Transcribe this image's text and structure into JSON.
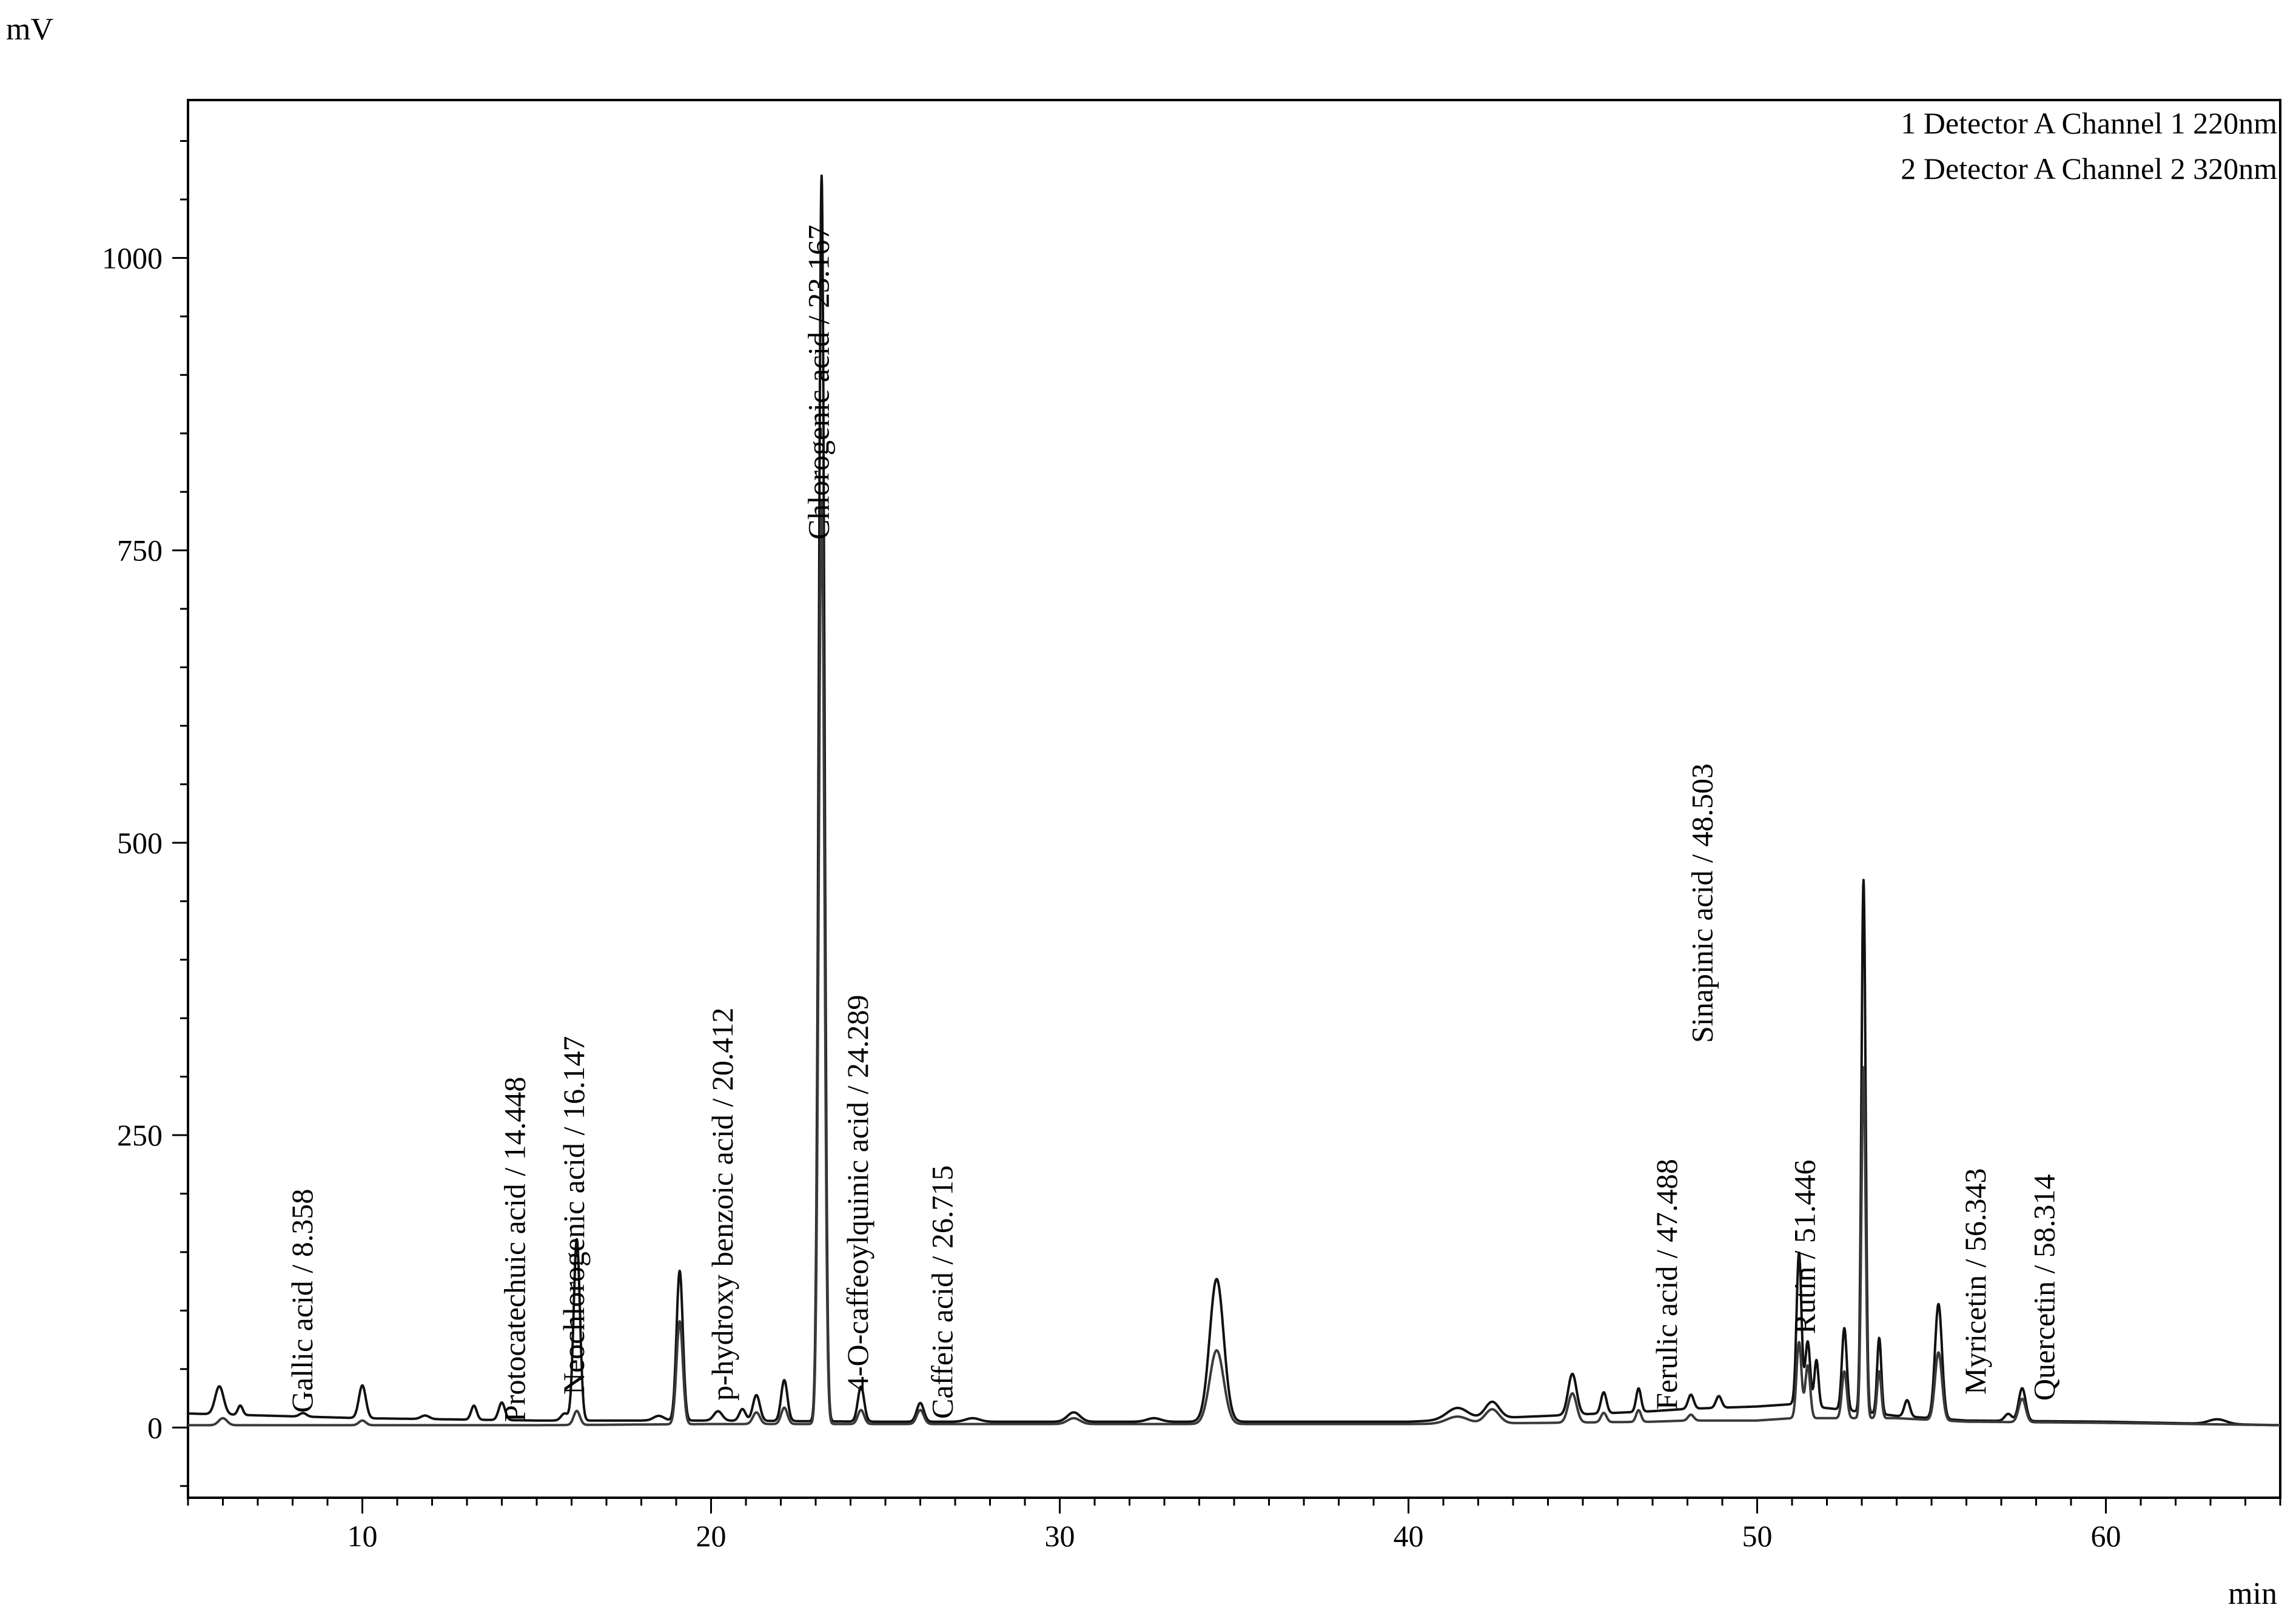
{
  "chart_data": {
    "type": "line",
    "y_unit": "mV",
    "x_unit": "min",
    "xlim": [
      5,
      65
    ],
    "ylim": [
      -60,
      1135
    ],
    "x_ticks": [
      10,
      20,
      30,
      40,
      50,
      60
    ],
    "x_tick_labels": [
      "10",
      "20",
      "30",
      "40",
      "50",
      "60"
    ],
    "y_ticks": [
      0,
      250,
      500,
      750,
      1000
    ],
    "y_tick_labels": [
      "0",
      "250",
      "500",
      "750",
      "1000"
    ],
    "grid": false,
    "legend_position": "top-right",
    "legend": [
      "1 Detector A Channel 1 220nm",
      "2 Detector A Channel 2 320nm"
    ],
    "series": [
      {
        "name": "1 Detector A Channel 1 220nm",
        "baseline": [
          [
            5,
            12
          ],
          [
            10,
            8
          ],
          [
            15,
            6
          ],
          [
            20,
            6
          ],
          [
            25,
            5
          ],
          [
            30,
            5
          ],
          [
            35,
            5
          ],
          [
            40,
            5
          ],
          [
            44,
            10
          ],
          [
            47,
            14
          ],
          [
            48,
            16
          ],
          [
            50,
            18
          ],
          [
            51,
            20
          ],
          [
            54,
            10
          ],
          [
            56,
            6
          ],
          [
            60,
            5
          ],
          [
            65,
            2
          ]
        ],
        "peaks": [
          [
            5.9,
            24,
            0.12
          ],
          [
            6.5,
            8,
            0.07
          ],
          [
            8.3,
            3,
            0.1
          ],
          [
            10.0,
            28,
            0.1
          ],
          [
            11.8,
            3,
            0.12
          ],
          [
            13.2,
            12,
            0.08
          ],
          [
            14.0,
            15,
            0.09
          ],
          [
            15.8,
            6,
            0.1
          ],
          [
            16.15,
            155,
            0.09
          ],
          [
            18.5,
            4,
            0.15
          ],
          [
            19.1,
            128,
            0.09
          ],
          [
            20.2,
            8,
            0.12
          ],
          [
            20.9,
            10,
            0.09
          ],
          [
            21.3,
            22,
            0.1
          ],
          [
            22.1,
            35,
            0.09
          ],
          [
            23.17,
            1065,
            0.08
          ],
          [
            24.3,
            30,
            0.09
          ],
          [
            26.0,
            16,
            0.1
          ],
          [
            27.5,
            3,
            0.2
          ],
          [
            30.4,
            8,
            0.18
          ],
          [
            32.7,
            3,
            0.2
          ],
          [
            34.5,
            122,
            0.2
          ],
          [
            41.4,
            10,
            0.3
          ],
          [
            42.4,
            14,
            0.2
          ],
          [
            44.7,
            35,
            0.12
          ],
          [
            45.6,
            18,
            0.08
          ],
          [
            46.6,
            20,
            0.07
          ],
          [
            48.1,
            12,
            0.08
          ],
          [
            48.9,
            10,
            0.08
          ],
          [
            51.2,
            130,
            0.07
          ],
          [
            51.45,
            55,
            0.07
          ],
          [
            51.7,
            40,
            0.06
          ],
          [
            52.5,
            70,
            0.07
          ],
          [
            53.05,
            455,
            0.06
          ],
          [
            53.5,
            65,
            0.06
          ],
          [
            54.3,
            14,
            0.08
          ],
          [
            55.2,
            98,
            0.1
          ],
          [
            57.2,
            6,
            0.1
          ],
          [
            57.6,
            28,
            0.1
          ],
          [
            63.2,
            4,
            0.25
          ]
        ]
      },
      {
        "name": "2 Detector A Channel 2 320nm",
        "baseline": [
          [
            5,
            2
          ],
          [
            10,
            2
          ],
          [
            15,
            2
          ],
          [
            20,
            3
          ],
          [
            25,
            3
          ],
          [
            30,
            3
          ],
          [
            35,
            3
          ],
          [
            40,
            3
          ],
          [
            44,
            4
          ],
          [
            47,
            5
          ],
          [
            48,
            6
          ],
          [
            50,
            6
          ],
          [
            51,
            8
          ],
          [
            54,
            8
          ],
          [
            56,
            5
          ],
          [
            60,
            4
          ],
          [
            65,
            2
          ]
        ],
        "peaks": [
          [
            6.0,
            6,
            0.12
          ],
          [
            10.0,
            4,
            0.1
          ],
          [
            16.15,
            12,
            0.09
          ],
          [
            19.1,
            88,
            0.09
          ],
          [
            21.3,
            10,
            0.1
          ],
          [
            22.1,
            14,
            0.09
          ],
          [
            23.17,
            790,
            0.08
          ],
          [
            24.3,
            12,
            0.09
          ],
          [
            26.0,
            12,
            0.1
          ],
          [
            30.4,
            5,
            0.18
          ],
          [
            34.5,
            63,
            0.2
          ],
          [
            41.4,
            6,
            0.3
          ],
          [
            42.4,
            12,
            0.2
          ],
          [
            44.7,
            25,
            0.12
          ],
          [
            45.6,
            8,
            0.08
          ],
          [
            46.6,
            10,
            0.07
          ],
          [
            48.1,
            5,
            0.08
          ],
          [
            51.2,
            65,
            0.07
          ],
          [
            51.45,
            45,
            0.07
          ],
          [
            52.5,
            40,
            0.07
          ],
          [
            53.05,
            300,
            0.06
          ],
          [
            53.5,
            40,
            0.06
          ],
          [
            55.2,
            58,
            0.1
          ],
          [
            57.6,
            20,
            0.1
          ]
        ]
      }
    ],
    "annotations": [
      {
        "text": "Gallic acid / 8.358",
        "x": 8.358
      },
      {
        "text": "Protocatechuic acid / 14.448",
        "x": 14.448
      },
      {
        "text": "Neochlorogenic acid / 16.147",
        "x": 16.147
      },
      {
        "text": "p-hydroxy benzoic acid / 20.412",
        "x": 20.412
      },
      {
        "text": "Chlorogenic acid / 23.167",
        "x": 23.167
      },
      {
        "text": "4-O-caffeoylquinic acid / 24.289",
        "x": 24.289
      },
      {
        "text": "Caffeic acid / 26.715",
        "x": 26.715
      },
      {
        "text": "Ferulic acid / 47.488",
        "x": 47.488
      },
      {
        "text": "Sinapinic acid / 48.503",
        "x": 48.503
      },
      {
        "text": "Rutin / 51.446",
        "x": 51.446
      },
      {
        "text": "Myricetin / 56.343",
        "x": 56.343
      },
      {
        "text": "Quercetin / 58.314",
        "x": 58.314
      }
    ]
  }
}
